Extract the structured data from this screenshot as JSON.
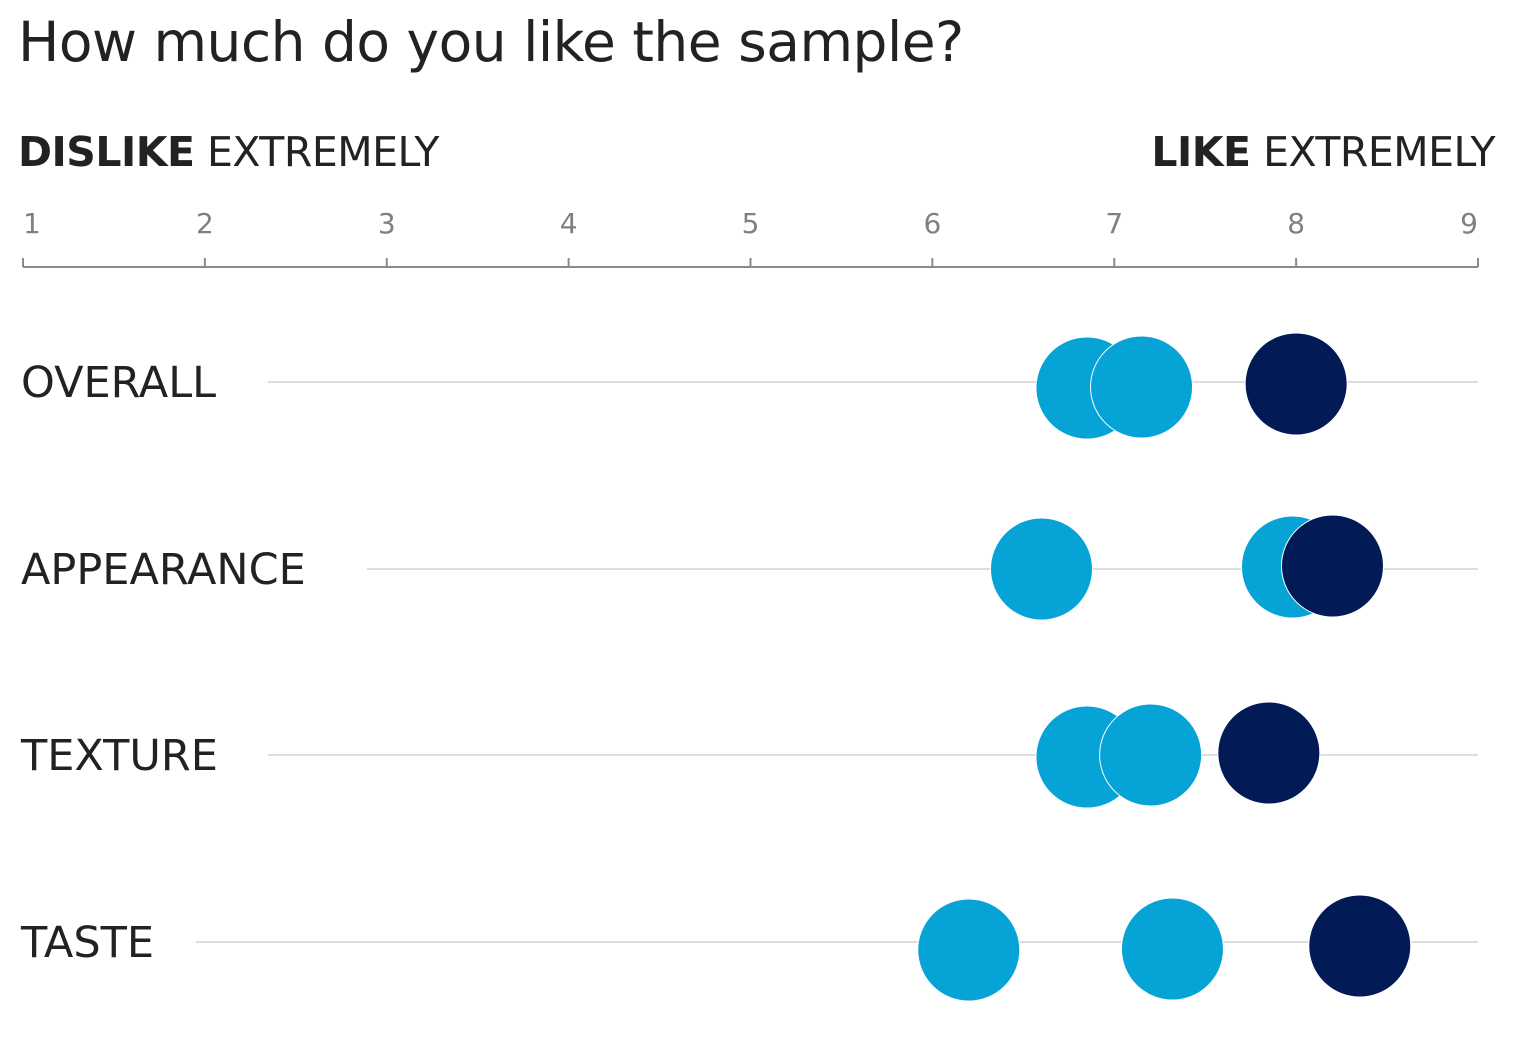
{
  "title": "How much do you like the sample?",
  "scale_left": {
    "strong": "DISLIKE",
    "regular": "EXTREMELY"
  },
  "scale_right": {
    "strong": "LIKE",
    "regular": "EXTREMELY"
  },
  "colors": {
    "light_blue": "#05A3D6",
    "navy": "#021A55",
    "axis": "#8a8a8a",
    "row_line": "#d3d3d3",
    "text": "#222222",
    "tick_text": "#808080"
  },
  "chart_data": {
    "type": "scatter",
    "xlim": [
      1,
      9
    ],
    "ticks": [
      1,
      2,
      3,
      4,
      5,
      6,
      7,
      8,
      9
    ],
    "tick_labels": [
      "1",
      "2",
      "3",
      "4",
      "5",
      "6",
      "7",
      "8",
      "9"
    ],
    "categories": [
      "OVERALL",
      "APPEARANCE",
      "TEXTURE",
      "TASTE"
    ],
    "grid": false,
    "legend": "none",
    "points": [
      {
        "category": "OVERALL",
        "value": 6.85,
        "color": "light_blue"
      },
      {
        "category": "OVERALL",
        "value": 7.15,
        "color": "light_blue"
      },
      {
        "category": "OVERALL",
        "value": 8.0,
        "color": "navy"
      },
      {
        "category": "APPEARANCE",
        "value": 6.6,
        "color": "light_blue"
      },
      {
        "category": "APPEARANCE",
        "value": 7.98,
        "color": "light_blue"
      },
      {
        "category": "APPEARANCE",
        "value": 8.2,
        "color": "navy"
      },
      {
        "category": "TEXTURE",
        "value": 6.85,
        "color": "light_blue"
      },
      {
        "category": "TEXTURE",
        "value": 7.2,
        "color": "light_blue"
      },
      {
        "category": "TEXTURE",
        "value": 7.85,
        "color": "navy"
      },
      {
        "category": "TASTE",
        "value": 6.2,
        "color": "light_blue"
      },
      {
        "category": "TASTE",
        "value": 7.32,
        "color": "light_blue"
      },
      {
        "category": "TASTE",
        "value": 8.35,
        "color": "navy"
      }
    ]
  }
}
